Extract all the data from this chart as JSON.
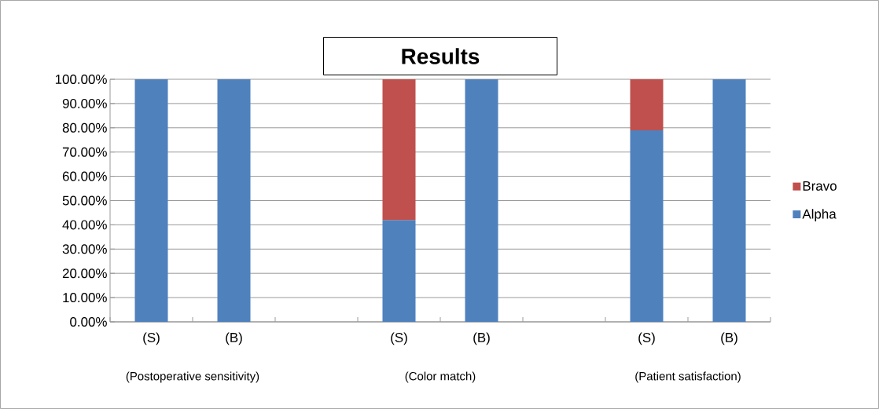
{
  "chart_data": {
    "type": "bar",
    "title": "Results",
    "stacked": true,
    "categories": [
      "(S)",
      "(B)",
      null,
      "(S)",
      "(B)",
      null,
      "(S)",
      "(B)"
    ],
    "series": [
      {
        "name": "Alpha",
        "color": "#4f81bd",
        "values": [
          100,
          100,
          null,
          42,
          100,
          null,
          79,
          100
        ]
      },
      {
        "name": "Bravo",
        "color": "#c0504d",
        "values": [
          null,
          null,
          null,
          58,
          null,
          null,
          21,
          null
        ]
      }
    ],
    "ylim": [
      0,
      100
    ],
    "yticks": [
      {
        "value": 0,
        "label": "0.00%"
      },
      {
        "value": 10,
        "label": "10.00%"
      },
      {
        "value": 20,
        "label": "20.00%"
      },
      {
        "value": 30,
        "label": "30.00%"
      },
      {
        "value": 40,
        "label": "40.00%"
      },
      {
        "value": 50,
        "label": "50.00%"
      },
      {
        "value": 60,
        "label": "60.00%"
      },
      {
        "value": 70,
        "label": "70.00%"
      },
      {
        "value": 80,
        "label": "80.00%"
      },
      {
        "value": 90,
        "label": "90.00%"
      },
      {
        "value": 100,
        "label": "100.00%"
      }
    ],
    "grid": "y",
    "legend": "right",
    "annotations": [
      "(Postoperative sensitivity)",
      "(Color match)",
      "(Patient satisfaction)"
    ]
  }
}
